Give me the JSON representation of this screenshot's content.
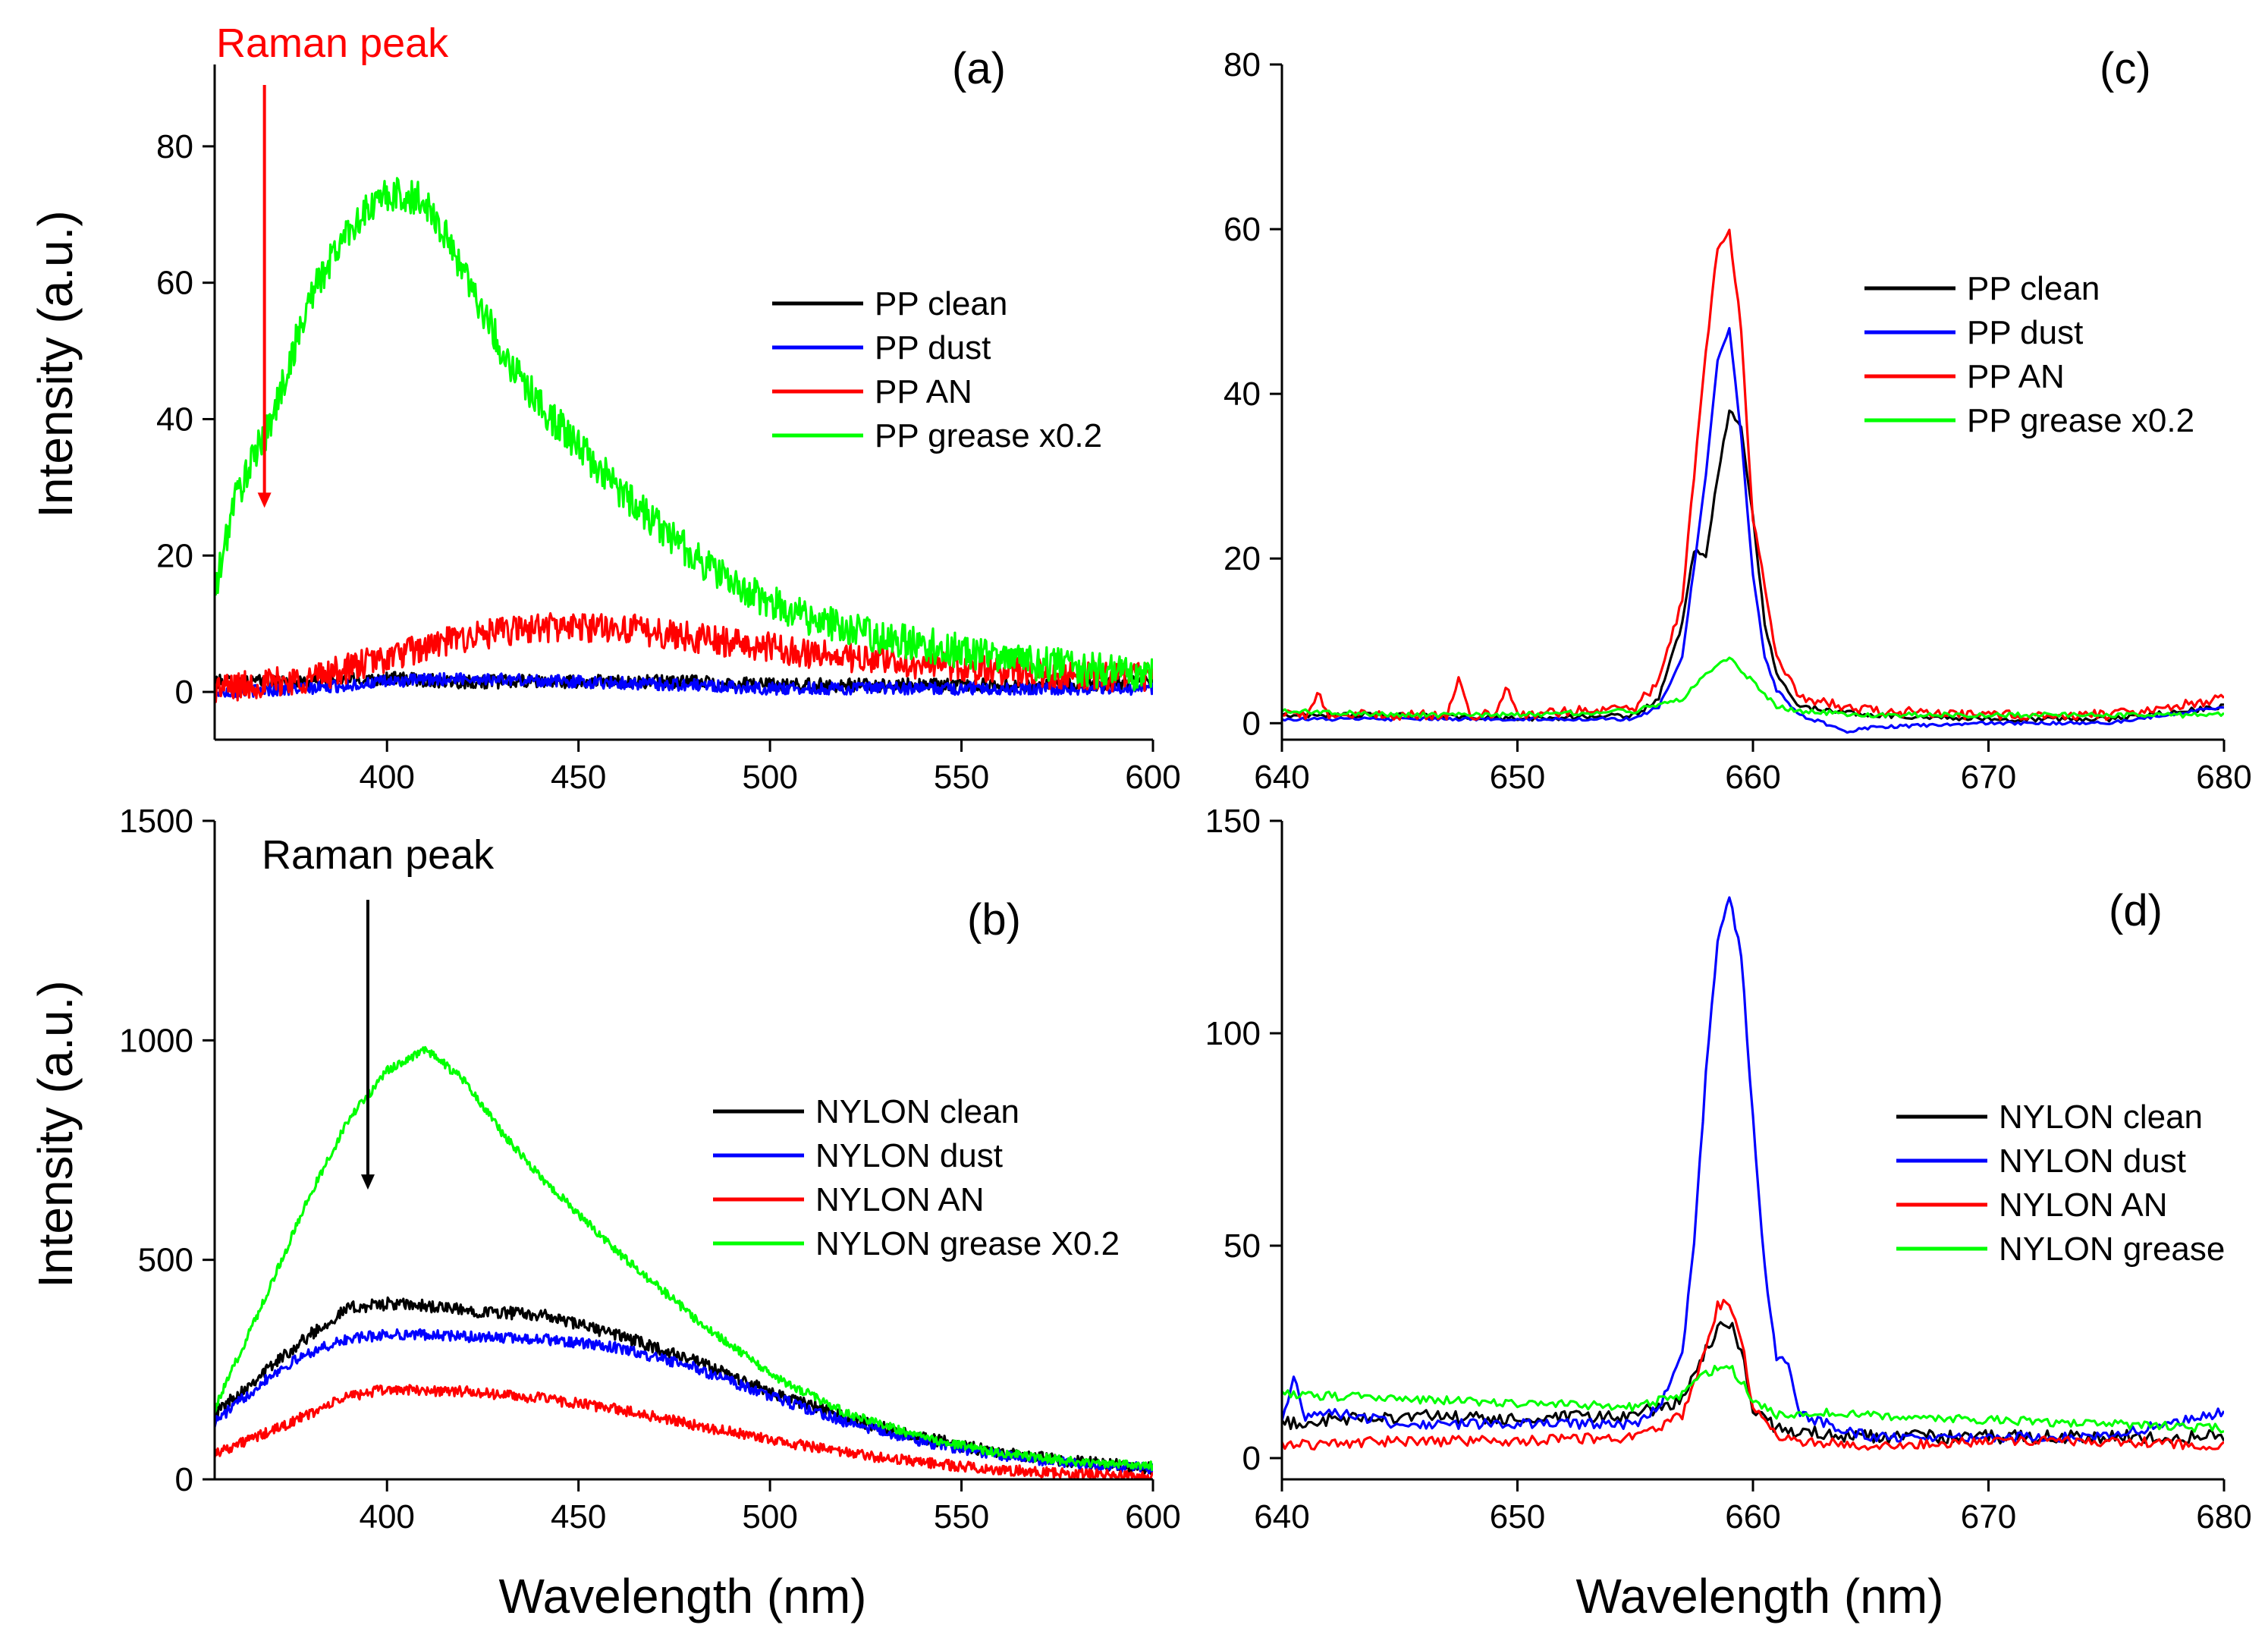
{
  "figure": {
    "x_axis_title": "Wavelength (nm)",
    "y_axis_title": "Intensity (a.u.)"
  },
  "chart_data": [
    {
      "id": "a",
      "panel_label": "(a)",
      "type": "line",
      "xlabel": "",
      "ylabel": "Intensity (a.u.)",
      "xlim": [
        355,
        600
      ],
      "ylim": [
        -7,
        92
      ],
      "xticks": [
        400,
        450,
        500,
        550,
        600
      ],
      "yticks": [
        0,
        20,
        40,
        60,
        80
      ],
      "legend_position": "right",
      "annotation": {
        "text": "Raman peak",
        "color": "#ff0000",
        "arrow_x": 368,
        "arrow_from_y": 89,
        "arrow_to_y": 27
      },
      "series": [
        {
          "name": "PP clean",
          "color": "#000000",
          "noise": 1.0,
          "x": [
            355,
            380,
            400,
            420,
            450,
            480,
            500,
            520,
            550,
            575,
            600
          ],
          "y": [
            1.5,
            1.5,
            2,
            1.5,
            1.5,
            1.5,
            1,
            1,
            1,
            1,
            1.5
          ]
        },
        {
          "name": "PP dust",
          "color": "#0000ff",
          "noise": 0.9,
          "x": [
            355,
            380,
            400,
            420,
            450,
            480,
            500,
            520,
            550,
            575,
            600
          ],
          "y": [
            0,
            0.5,
            1.5,
            2,
            1.5,
            1,
            0.5,
            0.5,
            0.5,
            0.5,
            0.5
          ]
        },
        {
          "name": "PP AN",
          "color": "#ff0000",
          "noise": 2.2,
          "x": [
            355,
            380,
            400,
            420,
            440,
            460,
            480,
            500,
            520,
            540,
            560,
            580,
            600
          ],
          "y": [
            0.5,
            2,
            5,
            8,
            9.5,
            9.5,
            8,
            6.5,
            5,
            4,
            3,
            2.5,
            2
          ]
        },
        {
          "name": "PP grease x0.2",
          "color": "#00ff00",
          "noise": 2.6,
          "x": [
            355,
            360,
            370,
            380,
            390,
            400,
            410,
            420,
            430,
            440,
            450,
            460,
            470,
            480,
            490,
            500,
            520,
            540,
            560,
            580,
            600
          ],
          "y": [
            14,
            28,
            40,
            58,
            68,
            73,
            72,
            62,
            50,
            42,
            36,
            30,
            25,
            20,
            16,
            13,
            9,
            7,
            5,
            3.5,
            2.5
          ]
        }
      ]
    },
    {
      "id": "b",
      "panel_label": "(b)",
      "type": "line",
      "xlabel": "Wavelength (nm)",
      "ylabel": "Intensity (a.u.)",
      "xlim": [
        355,
        600
      ],
      "ylim": [
        0,
        1500
      ],
      "xticks": [
        400,
        450,
        500,
        550,
        600
      ],
      "yticks": [
        0,
        500,
        1000,
        1500
      ],
      "legend_position": "right",
      "annotation": {
        "text": "Raman peak",
        "color": "#000000",
        "arrow_x": 395,
        "arrow_from_y": 1320,
        "arrow_to_y": 660
      },
      "series": [
        {
          "name": "NYLON clean",
          "color": "#000000",
          "noise": 14,
          "x": [
            355,
            370,
            380,
            390,
            400,
            410,
            420,
            440,
            460,
            480,
            500,
            520,
            540,
            560,
            580,
            600
          ],
          "y": [
            150,
            260,
            330,
            390,
            400,
            395,
            385,
            375,
            330,
            270,
            200,
            140,
            95,
            60,
            40,
            25
          ]
        },
        {
          "name": "NYLON dust",
          "color": "#0000ff",
          "noise": 12,
          "x": [
            355,
            370,
            380,
            390,
            400,
            410,
            420,
            440,
            460,
            480,
            500,
            520,
            540,
            560,
            580,
            600
          ],
          "y": [
            130,
            240,
            290,
            320,
            330,
            330,
            325,
            320,
            300,
            255,
            190,
            130,
            85,
            55,
            35,
            25
          ]
        },
        {
          "name": "NYLON AN",
          "color": "#ff0000",
          "noise": 12,
          "x": [
            355,
            370,
            380,
            390,
            400,
            420,
            440,
            460,
            480,
            500,
            520,
            540,
            560,
            580,
            600
          ],
          "y": [
            60,
            110,
            150,
            190,
            205,
            200,
            185,
            160,
            125,
            90,
            60,
            38,
            22,
            12,
            8
          ]
        },
        {
          "name": "NYLON grease X0.2",
          "color": "#00ff00",
          "noise": 10,
          "x": [
            355,
            370,
            380,
            390,
            400,
            410,
            420,
            430,
            440,
            460,
            480,
            500,
            520,
            540,
            560,
            580,
            600
          ],
          "y": [
            160,
            450,
            650,
            820,
            930,
            980,
            910,
            790,
            690,
            520,
            370,
            240,
            150,
            95,
            60,
            40,
            30
          ]
        }
      ]
    },
    {
      "id": "c",
      "panel_label": "(c)",
      "type": "line",
      "xlabel": "",
      "ylabel": "",
      "xlim": [
        640,
        680
      ],
      "ylim": [
        -2,
        80
      ],
      "xticks": [
        640,
        650,
        660,
        670,
        680
      ],
      "yticks": [
        0,
        20,
        40,
        60,
        80
      ],
      "legend_position": "right",
      "series": [
        {
          "name": "PP clean",
          "color": "#000000",
          "noise": 0.3,
          "x": [
            640,
            645,
            650,
            655,
            656,
            657,
            657.5,
            658,
            658.5,
            659,
            659.5,
            660,
            660.5,
            661,
            662,
            665,
            670,
            675,
            680
          ],
          "y": [
            1,
            1,
            0.5,
            1,
            3,
            12,
            21,
            20,
            30,
            38,
            36,
            25,
            12,
            6,
            2,
            1,
            0.5,
            0.5,
            2
          ]
        },
        {
          "name": "PP dust",
          "color": "#0000ff",
          "noise": 0.2,
          "x": [
            640,
            645,
            650,
            655,
            656,
            657,
            658,
            658.5,
            659,
            659.5,
            660,
            660.5,
            661,
            662,
            664,
            665,
            670,
            675,
            680
          ],
          "y": [
            0.5,
            0.5,
            0.5,
            0.5,
            2,
            8,
            30,
            44,
            48,
            35,
            18,
            8,
            4,
            1,
            -1,
            -0.5,
            0,
            0,
            2
          ]
        },
        {
          "name": "PP AN",
          "color": "#ff0000",
          "noise": 0.6,
          "x": [
            640,
            641,
            641.5,
            642,
            645,
            647,
            647.5,
            648,
            649,
            649.5,
            650,
            655,
            656,
            657,
            658,
            658.5,
            659,
            659.5,
            660,
            661,
            662,
            665,
            670,
            675,
            680
          ],
          "y": [
            1,
            1,
            3.5,
            1,
            1,
            1,
            5,
            1,
            1,
            4.5,
            1,
            2,
            5,
            15,
            45,
            58,
            60,
            48,
            25,
            8,
            3,
            1.5,
            1,
            1,
            3
          ]
        },
        {
          "name": "PP grease x0.2",
          "color": "#00ff00",
          "noise": 0.3,
          "x": [
            640,
            645,
            650,
            655,
            657,
            658,
            659,
            660,
            661,
            662,
            665,
            670,
            675,
            680
          ],
          "y": [
            1.5,
            1,
            1,
            1.5,
            3,
            6,
            8,
            5,
            2,
            1.5,
            1,
            1,
            1,
            1
          ]
        }
      ]
    },
    {
      "id": "d",
      "panel_label": "(d)",
      "type": "line",
      "xlabel": "Wavelength (nm)",
      "ylabel": "",
      "xlim": [
        640,
        680
      ],
      "ylim": [
        -5,
        150
      ],
      "xticks": [
        640,
        650,
        660,
        670,
        680
      ],
      "yticks": [
        0,
        50,
        100,
        150
      ],
      "legend_position": "right",
      "series": [
        {
          "name": "NYLON clean",
          "color": "#000000",
          "noise": 1.6,
          "x": [
            640,
            645,
            650,
            655,
            657,
            658,
            658.5,
            659,
            659.5,
            660,
            661,
            662,
            665,
            670,
            675,
            680
          ],
          "y": [
            8,
            10,
            9,
            10,
            14,
            25,
            30,
            32,
            25,
            12,
            7,
            6,
            5,
            5,
            5,
            5
          ]
        },
        {
          "name": "NYLON dust",
          "color": "#0000ff",
          "noise": 1.2,
          "x": [
            640,
            640.5,
            641,
            642,
            645,
            650,
            655,
            656,
            657,
            657.5,
            658,
            658.5,
            659,
            659.5,
            660,
            660.5,
            661,
            661.5,
            662,
            665,
            670,
            675,
            680
          ],
          "y": [
            8,
            19,
            10,
            11,
            8,
            8,
            8,
            12,
            25,
            50,
            90,
            122,
            133,
            118,
            80,
            45,
            24,
            22,
            10,
            5,
            5,
            5,
            11
          ]
        },
        {
          "name": "NYLON AN",
          "color": "#ff0000",
          "noise": 1.2,
          "x": [
            640,
            645,
            650,
            655,
            657,
            658,
            658.5,
            659,
            659.5,
            660,
            661,
            662,
            665,
            670,
            675,
            680
          ],
          "y": [
            3,
            4,
            4,
            5,
            10,
            25,
            36,
            37,
            28,
            12,
            5,
            4,
            3,
            4,
            4,
            3
          ]
        },
        {
          "name": "NYLON grease",
          "color": "#00ff00",
          "noise": 1.0,
          "x": [
            640,
            645,
            650,
            655,
            657,
            658,
            659,
            660,
            661,
            663,
            665,
            670,
            675,
            680
          ],
          "y": [
            15,
            14,
            13,
            12,
            15,
            20,
            22,
            14,
            10,
            11,
            10,
            9,
            8,
            7
          ]
        }
      ]
    }
  ]
}
